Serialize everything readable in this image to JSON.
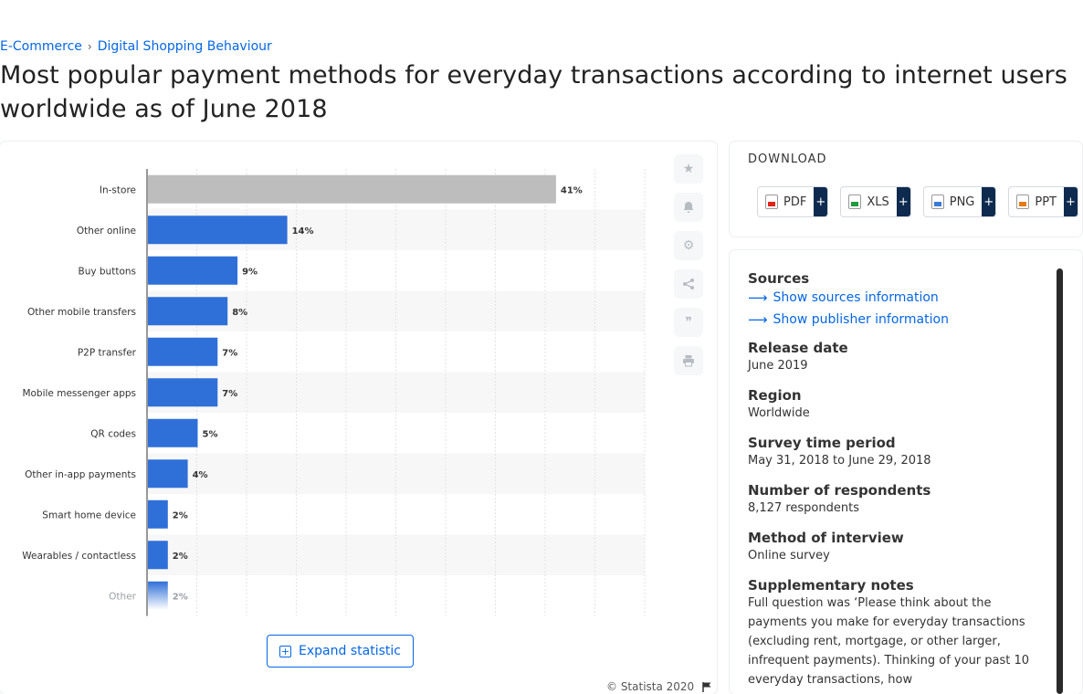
{
  "breadcrumb": {
    "items": [
      "E-Commerce",
      "Digital Shopping Behaviour"
    ],
    "separator": "›"
  },
  "page_title": "Most popular payment methods for everyday transactions according to internet users worldwide as of June 2018",
  "chart_tools": [
    "star-icon",
    "bell-icon",
    "gear-icon",
    "share-icon",
    "quote-icon",
    "print-icon"
  ],
  "expand_label": "Expand statistic",
  "copyright": "© Statista 2020",
  "download": {
    "title": "DOWNLOAD",
    "buttons": [
      {
        "label": "PDF",
        "icon": "pdf-file-icon",
        "color": "#e2231a"
      },
      {
        "label": "XLS",
        "icon": "xls-file-icon",
        "color": "#1f9c3b"
      },
      {
        "label": "PNG",
        "icon": "png-file-icon",
        "color": "#3b7bd6"
      },
      {
        "label": "PPT",
        "icon": "ppt-file-icon",
        "color": "#e47a16"
      }
    ],
    "add": "+"
  },
  "info": {
    "sources_title": "Sources",
    "sources_link": "Show sources information",
    "publisher_link": "Show publisher information",
    "release_title": "Release date",
    "release_value": "June 2019",
    "region_title": "Region",
    "region_value": "Worldwide",
    "survey_title": "Survey time period",
    "survey_value": "May 31, 2018 to June 29, 2018",
    "respondents_title": "Number of respondents",
    "respondents_value": "8,127 respondents",
    "method_title": "Method of interview",
    "method_value": "Online survey",
    "notes_title": "Supplementary notes",
    "notes_value": "Full question was ‘Please think about the payments you make for everyday transactions (excluding rent, mortgage, or other larger, infrequent payments). Thinking of your past 10 everyday transactions, how"
  },
  "chart_data": {
    "type": "bar",
    "orientation": "horizontal",
    "categories": [
      "In-store",
      "Other online",
      "Buy buttons",
      "Other mobile transfers",
      "P2P transfer",
      "Mobile messenger apps",
      "QR codes",
      "Other in-app payments",
      "Smart home device",
      "Wearables / contactless",
      "Other"
    ],
    "values": [
      41,
      14,
      9,
      8,
      7,
      7,
      5,
      4,
      2,
      2,
      2
    ],
    "value_labels": [
      "41%",
      "14%",
      "9%",
      "8%",
      "7%",
      "7%",
      "5%",
      "4%",
      "2%",
      "2%",
      "2%"
    ],
    "unit": "%",
    "xlim": [
      0,
      50
    ],
    "colors": {
      "highlight": "#bdbdbd",
      "bar": "#2f6fd8"
    },
    "grid": true
  }
}
